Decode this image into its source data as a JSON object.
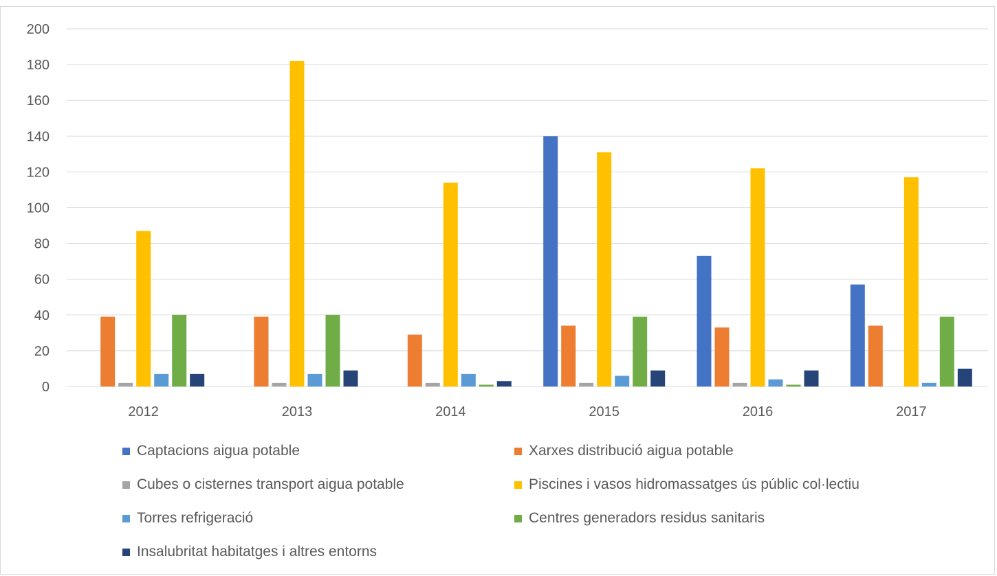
{
  "chart_data": {
    "type": "bar",
    "categories": [
      "2012",
      "2013",
      "2014",
      "2015",
      "2016",
      "2017"
    ],
    "series": [
      {
        "name": "Captacions aigua potable",
        "color": "#4472C4",
        "values": [
          0,
          0,
          0,
          140,
          73,
          57
        ]
      },
      {
        "name": "Xarxes distribució aigua potable",
        "color": "#ED7D31",
        "values": [
          39,
          39,
          29,
          34,
          33,
          34
        ]
      },
      {
        "name": "Cubes o cisternes transport aigua potable",
        "color": "#A5A5A5",
        "values": [
          2,
          2,
          2,
          2,
          2,
          0
        ]
      },
      {
        "name": "Piscines i vasos hidromassatges ús públic col·lectiu",
        "color": "#FFC000",
        "values": [
          87,
          182,
          114,
          131,
          122,
          117
        ]
      },
      {
        "name": "Torres refrigeració",
        "color": "#5B9BD5",
        "values": [
          7,
          7,
          7,
          6,
          4,
          2
        ]
      },
      {
        "name": "Centres generadors residus sanitaris",
        "color": "#70AD47",
        "values": [
          40,
          40,
          1,
          39,
          1,
          39
        ]
      },
      {
        "name": "Insalubritat habitatges i altres entorns",
        "color": "#264478",
        "values": [
          7,
          9,
          3,
          9,
          9,
          10
        ]
      }
    ],
    "yticks": [
      "0",
      "20",
      "40",
      "60",
      "80",
      "100",
      "120",
      "140",
      "160",
      "180",
      "200"
    ],
    "ylim": [
      0,
      200
    ],
    "grid": true,
    "legend_position": "bottom"
  }
}
